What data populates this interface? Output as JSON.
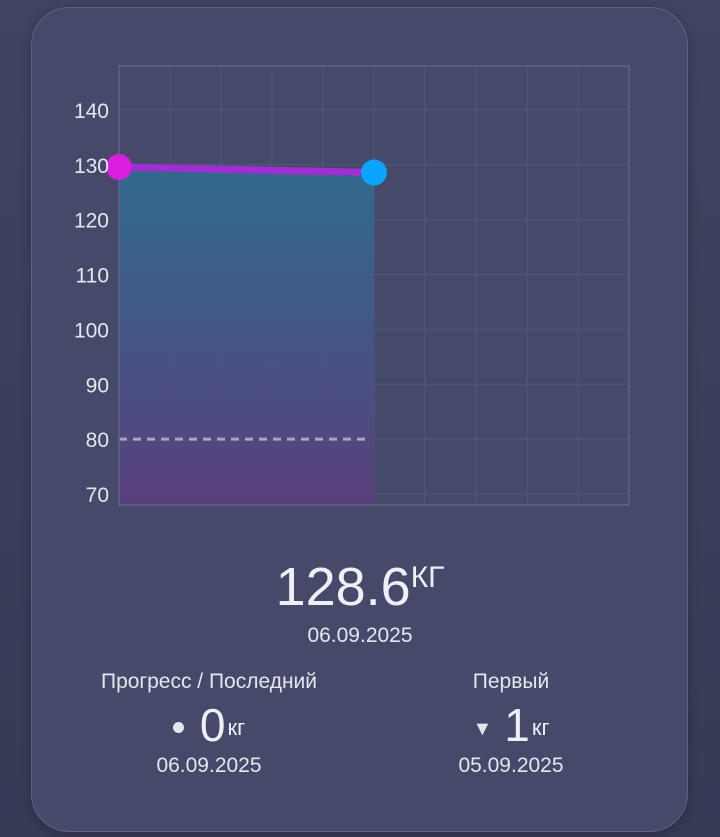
{
  "chart_data": {
    "type": "line",
    "ylim": [
      68,
      148
    ],
    "yticks": [
      70,
      80,
      90,
      100,
      110,
      120,
      130,
      140
    ],
    "target_line": 80,
    "points": [
      {
        "date": "05.09.2025",
        "value": 129.6,
        "color": "#d91ee0"
      },
      {
        "date": "06.09.2025",
        "value": 128.6,
        "color": "#0aa5ff"
      }
    ],
    "line_color": "#a52bd6",
    "fill_top_color": "#2f6c8e",
    "fill_bottom_color": "#5a3f7e"
  },
  "current": {
    "value": "128.6",
    "unit": "КГ",
    "date": "06.09.2025"
  },
  "progress_last": {
    "title": "Прогресс / Последний",
    "value": "0",
    "unit": "кг",
    "date": "06.09.2025",
    "marker_icon": "dot-icon"
  },
  "progress_first": {
    "title": "Первый",
    "marker": "▼",
    "value": "1",
    "unit": "кг",
    "date": "05.09.2025",
    "marker_icon": "down-triangle-icon"
  }
}
